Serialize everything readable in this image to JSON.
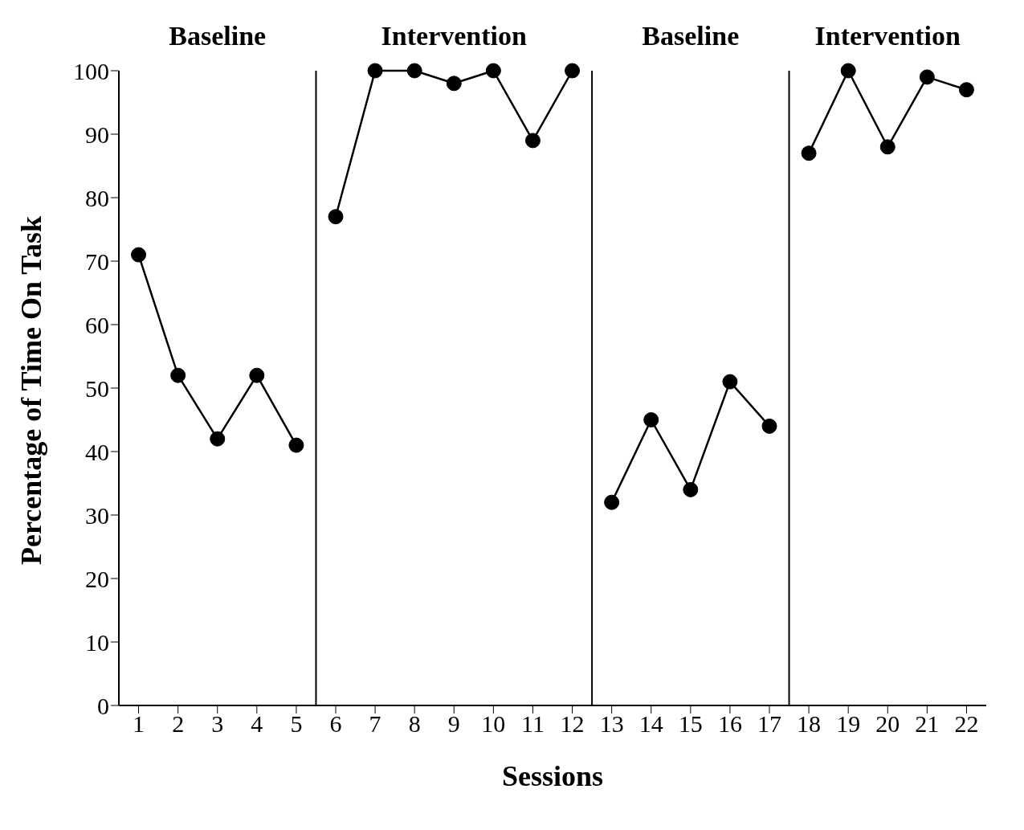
{
  "chart_data": {
    "type": "line",
    "xlabel": "Sessions",
    "ylabel": "Percentage of Time On Task",
    "x": [
      1,
      2,
      3,
      4,
      5,
      6,
      7,
      8,
      9,
      10,
      11,
      12,
      13,
      14,
      15,
      16,
      17,
      18,
      19,
      20,
      21,
      22
    ],
    "series": [
      {
        "color": "#000000",
        "values": [
          71,
          52,
          42,
          52,
          41,
          null,
          null,
          null,
          null,
          null,
          null,
          null,
          null,
          null,
          null,
          null,
          null,
          null,
          null,
          null,
          null,
          null
        ]
      },
      {
        "color": "#000000",
        "values": [
          null,
          null,
          null,
          null,
          null,
          77,
          100,
          100,
          98,
          100,
          89,
          100,
          null,
          null,
          null,
          null,
          null,
          null,
          null,
          null,
          null,
          null
        ]
      },
      {
        "color": "#000000",
        "values": [
          null,
          null,
          null,
          null,
          null,
          null,
          null,
          null,
          null,
          null,
          null,
          null,
          32,
          45,
          34,
          51,
          44,
          null,
          null,
          null,
          null,
          null
        ]
      },
      {
        "color": "#000000",
        "values": [
          null,
          null,
          null,
          null,
          null,
          null,
          null,
          null,
          null,
          null,
          null,
          null,
          null,
          null,
          null,
          null,
          null,
          87,
          100,
          88,
          99,
          97
        ]
      }
    ],
    "xlim": [
      0.5,
      22.5
    ],
    "xticks": [
      1,
      2,
      3,
      4,
      5,
      6,
      7,
      8,
      9,
      10,
      11,
      12,
      13,
      14,
      15,
      16,
      17,
      18,
      19,
      20,
      21,
      22
    ],
    "ylim": [
      0,
      100
    ],
    "yticks": [
      0,
      10,
      20,
      30,
      40,
      50,
      60,
      70,
      80,
      90,
      100
    ],
    "ref_lines": [
      {
        "axis": "x",
        "value": 5.5,
        "color": "#000000"
      },
      {
        "axis": "x",
        "value": 12.5,
        "color": "#000000"
      },
      {
        "axis": "x",
        "value": 17.5,
        "color": "#000000"
      }
    ],
    "annotations": [
      "Baseline",
      "Intervention",
      "Baseline",
      "Intervention"
    ],
    "grid": false,
    "legend": false,
    "marker": "circle",
    "line_style": "solid"
  }
}
